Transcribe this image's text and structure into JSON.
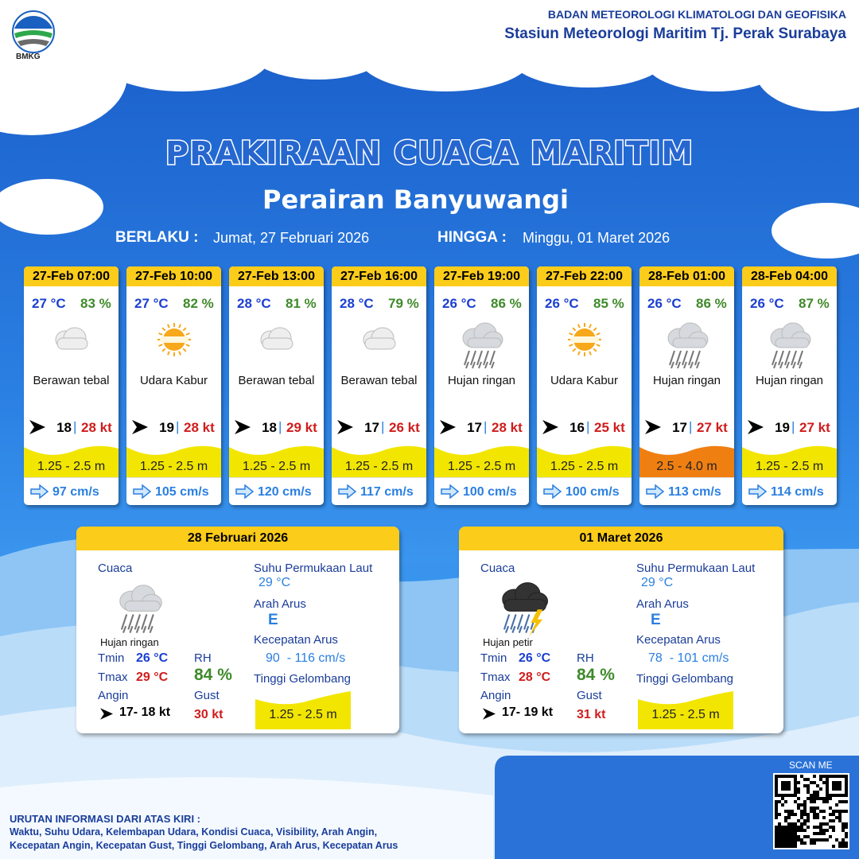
{
  "header": {
    "logo": "BMKG",
    "agency": "BADAN METEOROLOGI KLIMATOLOGI DAN GEOFISIKA",
    "station": "Stasiun Meteorologi Maritim Tj. Perak Surabaya"
  },
  "title": "PRAKIRAAN CUACA MARITIM",
  "subtitle": "Perairan Banyuwangi",
  "validity": {
    "from_label": "BERLAKU :",
    "from": "Jumat, 27 Februari 2026",
    "to_label": "HINGGA :",
    "to": "Minggu, 01 Maret 2026"
  },
  "wind_separator": "|",
  "forecasts": [
    {
      "time": "27-Feb 07:00",
      "temp": "27 °C",
      "rh": "83 %",
      "weather": "Berawan tebal",
      "wind": "18",
      "gust": "28 kt",
      "wave": "1.25 - 2.5 m",
      "wave_color": "#f2e600",
      "current": "97 cm/s"
    },
    {
      "time": "27-Feb 10:00",
      "temp": "27 °C",
      "rh": "82 %",
      "weather": "Udara Kabur",
      "wind": "19",
      "gust": "28 kt",
      "wave": "1.25 - 2.5 m",
      "wave_color": "#f2e600",
      "current": "105 cm/s"
    },
    {
      "time": "27-Feb 13:00",
      "temp": "28 °C",
      "rh": "81 %",
      "weather": "Berawan tebal",
      "wind": "18",
      "gust": "29 kt",
      "wave": "1.25 - 2.5 m",
      "wave_color": "#f2e600",
      "current": "120 cm/s"
    },
    {
      "time": "27-Feb 16:00",
      "temp": "28 °C",
      "rh": "79 %",
      "weather": "Berawan tebal",
      "wind": "17",
      "gust": "26 kt",
      "wave": "1.25 - 2.5 m",
      "wave_color": "#f2e600",
      "current": "117 cm/s"
    },
    {
      "time": "27-Feb 19:00",
      "temp": "26 °C",
      "rh": "86 %",
      "weather": "Hujan ringan",
      "wind": "17",
      "gust": "28 kt",
      "wave": "1.25 - 2.5 m",
      "wave_color": "#f2e600",
      "current": "100 cm/s"
    },
    {
      "time": "27-Feb 22:00",
      "temp": "26 °C",
      "rh": "85 %",
      "weather": "Udara Kabur",
      "wind": "16",
      "gust": "25 kt",
      "wave": "1.25 - 2.5 m",
      "wave_color": "#f2e600",
      "current": "100 cm/s"
    },
    {
      "time": "28-Feb 01:00",
      "temp": "26 °C",
      "rh": "86 %",
      "weather": "Hujan ringan",
      "wind": "17",
      "gust": "27 kt",
      "wave": "2.5 - 4.0 m",
      "wave_color": "#f07f12",
      "current": "113 cm/s"
    },
    {
      "time": "28-Feb 04:00",
      "temp": "26 °C",
      "rh": "87 %",
      "weather": "Hujan ringan",
      "wind": "19",
      "gust": "27 kt",
      "wave": "1.25 - 2.5 m",
      "wave_color": "#f2e600",
      "current": "114 cm/s"
    }
  ],
  "summary_labels": {
    "weather": "Cuaca",
    "tmin": "Tmin",
    "tmax": "Tmax",
    "rh": "RH",
    "wind": "Angin",
    "gust": "Gust",
    "sst": "Suhu Permukaan Laut",
    "current_dir": "Arah Arus",
    "current_speed": "Kecepatan Arus",
    "wave": "Tinggi Gelombang"
  },
  "summaries": [
    {
      "date": "28 Februari 2026",
      "weather": "Hujan ringan",
      "tmin": "26 °C",
      "tmax": "29 °C",
      "rh": "84 %",
      "wind": "17- 18 kt",
      "gust": "30 kt",
      "sst": "29 °C",
      "current_dir": "E",
      "current_speed": "90  - 116 cm/s",
      "wave": "1.25 - 2.5 m"
    },
    {
      "date": "01 Maret 2026",
      "weather": "Hujan petir",
      "tmin": "26 °C",
      "tmax": "28 °C",
      "rh": "84 %",
      "wind": "17- 19 kt",
      "gust": "31 kt",
      "sst": "29 °C",
      "current_dir": "E",
      "current_speed": "78  - 101 cm/s",
      "wave": "1.25 - 2.5 m"
    }
  ],
  "footer": {
    "scan": "SCAN ME",
    "note_title": "URUTAN INFORMASI DARI ATAS KIRI :",
    "note_lines": [
      "Waktu, Suhu Udara, Kelembapan Udara, Kondisi Cuaca, Visibility, Arah Angin,",
      "Kecepatan Angin, Kecepatan Gust, Tinggi Gelombang, Arah Arus, Kecepatan Arus"
    ]
  }
}
